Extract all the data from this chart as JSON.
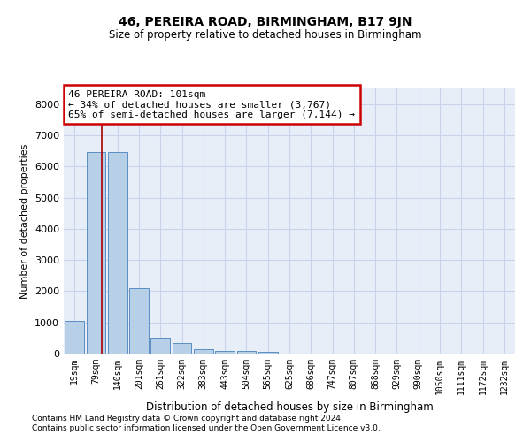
{
  "title": "46, PEREIRA ROAD, BIRMINGHAM, B17 9JN",
  "subtitle": "Size of property relative to detached houses in Birmingham",
  "xlabel": "Distribution of detached houses by size in Birmingham",
  "ylabel": "Number of detached properties",
  "footnote1": "Contains HM Land Registry data © Crown copyright and database right 2024.",
  "footnote2": "Contains public sector information licensed under the Open Government Licence v3.0.",
  "categories": [
    "19sqm",
    "79sqm",
    "140sqm",
    "201sqm",
    "261sqm",
    "322sqm",
    "383sqm",
    "443sqm",
    "504sqm",
    "565sqm",
    "625sqm",
    "686sqm",
    "747sqm",
    "807sqm",
    "868sqm",
    "929sqm",
    "990sqm",
    "1050sqm",
    "1111sqm",
    "1172sqm",
    "1232sqm"
  ],
  "values": [
    1050,
    6450,
    6450,
    2100,
    500,
    350,
    130,
    75,
    75,
    70,
    0,
    0,
    0,
    0,
    0,
    0,
    0,
    0,
    0,
    0,
    0
  ],
  "bar_color": "#b8cfe8",
  "bar_edge_color": "#5b8ec4",
  "vline_x": 1.28,
  "annotation_text": "46 PEREIRA ROAD: 101sqm\n← 34% of detached houses are smaller (3,767)\n65% of semi-detached houses are larger (7,144) →",
  "annotation_box_color": "#ffffff",
  "annotation_box_edge": "#cc0000",
  "vline_color": "#aa0000",
  "ylim": [
    0,
    8500
  ],
  "yticks": [
    0,
    1000,
    2000,
    3000,
    4000,
    5000,
    6000,
    7000,
    8000
  ],
  "grid_color": "#c8d4e8",
  "bg_color": "#e8eef8"
}
